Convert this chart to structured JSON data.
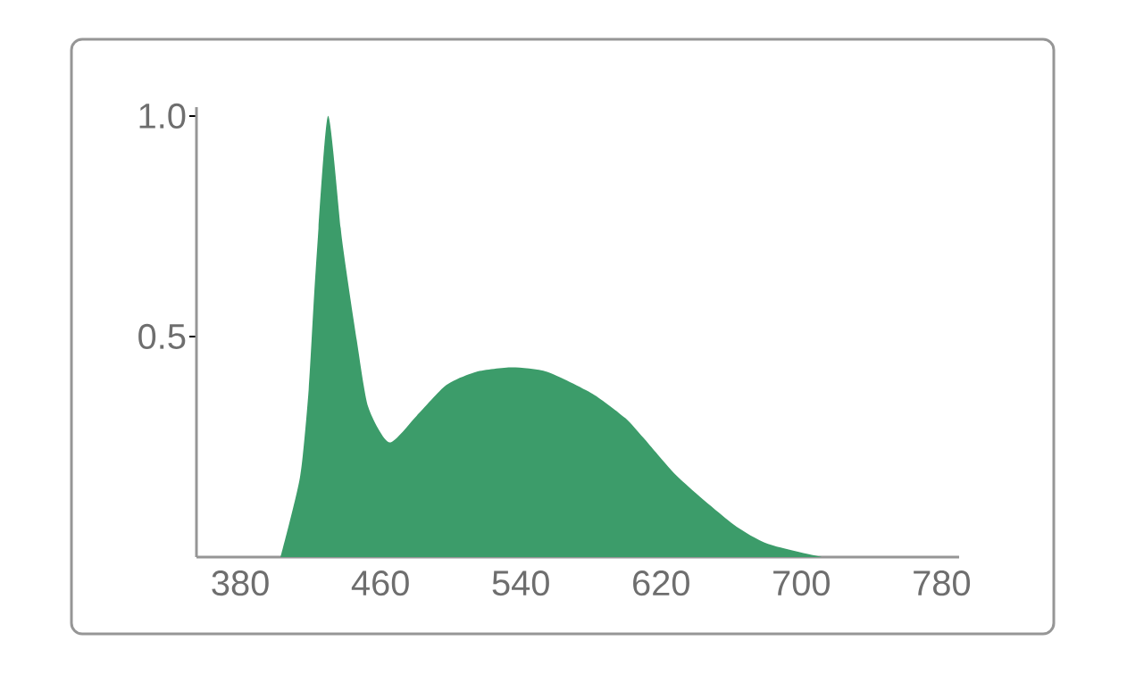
{
  "chart_data": {
    "type": "area",
    "x": [
      403,
      414,
      419,
      423,
      430,
      438,
      446.5,
      453,
      465,
      480.5,
      497.5,
      514.6,
      535,
      555,
      581,
      599.6,
      610,
      630,
      661,
      681,
      712
    ],
    "series": [
      {
        "color": "#3c9c6a",
        "values": [
          0,
          0.18,
          0.38,
          0.65,
          1.0,
          0.72,
          0.49,
          0.34,
          0.26,
          0.32,
          0.39,
          0.42,
          0.43,
          0.42,
          0.37,
          0.315,
          0.27,
          0.18,
          0.075,
          0.03,
          0
        ]
      }
    ],
    "xlim": [
      355,
      790
    ],
    "ylim": [
      0,
      1.02
    ],
    "xticks": [
      380,
      460,
      540,
      620,
      700,
      780
    ],
    "yticks": [
      {
        "value": 0.5,
        "label": "0.5"
      },
      {
        "value": 1.0,
        "label": "1.0"
      }
    ]
  }
}
